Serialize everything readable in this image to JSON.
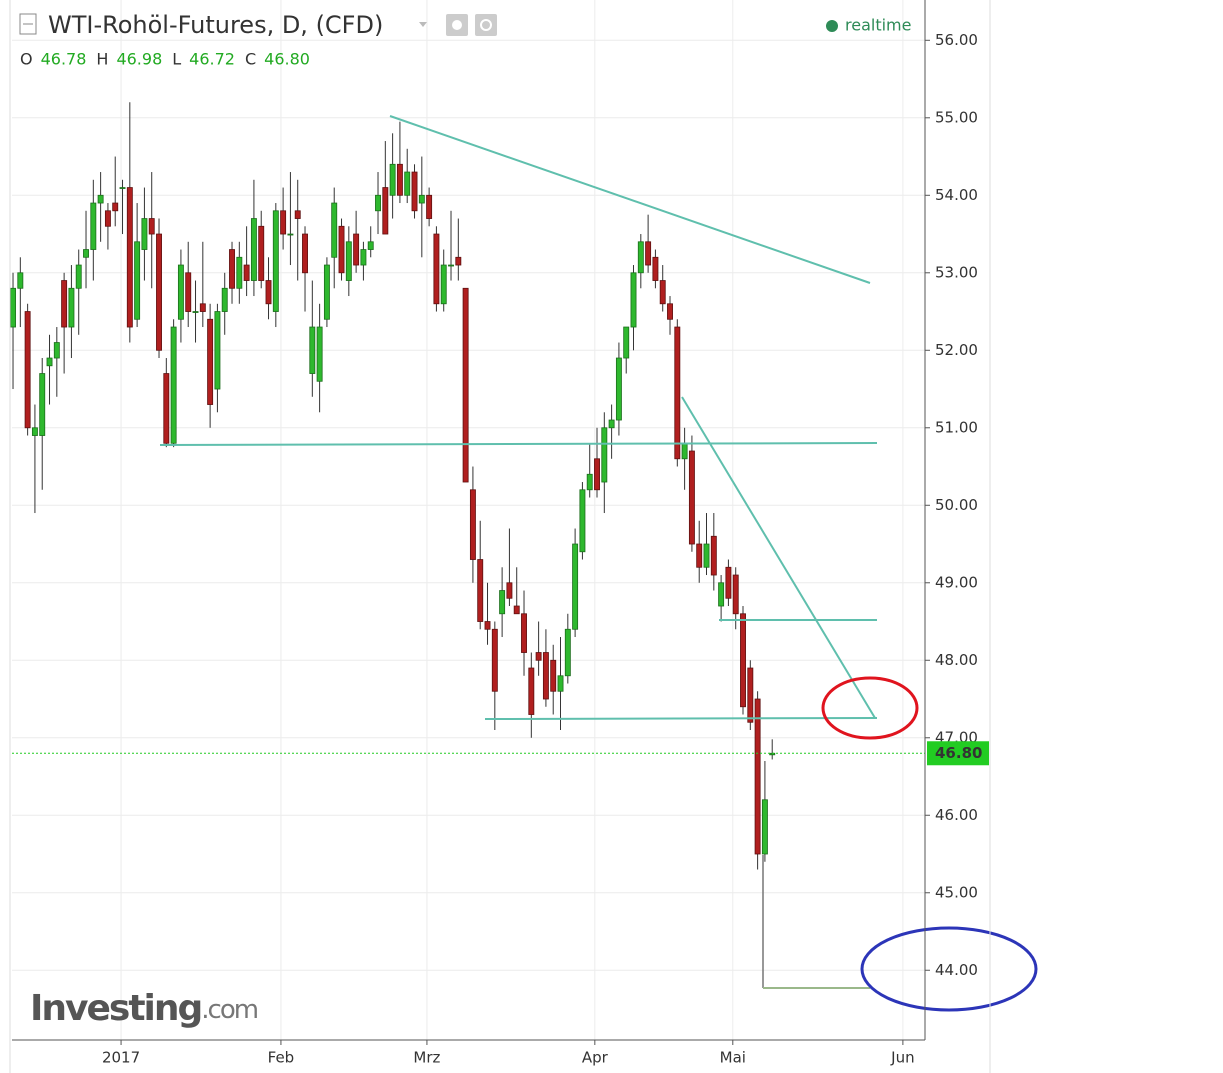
{
  "chart_data": {
    "type": "candlestick",
    "title": "WTI-Rohöl-Futures, D, (CFD)",
    "ohlc_legend": [
      {
        "key": "O",
        "value": "46.78"
      },
      {
        "key": "H",
        "value": "46.98"
      },
      {
        "key": "L",
        "value": "46.72"
      },
      {
        "key": "C",
        "value": "46.80"
      }
    ],
    "status": "realtime",
    "watermark": {
      "brand": "Investing",
      "suffix": ".com"
    },
    "up_color": "#2eb82e",
    "down_color": "#b01f1f",
    "grid": true,
    "open": [
      52.3,
      52.8,
      52.5,
      50.9,
      50.9,
      51.8,
      51.9,
      52.9,
      52.3,
      52.8,
      53.2,
      53.3,
      53.9,
      53.8,
      53.9,
      54.1,
      54.1,
      52.4,
      53.3,
      53.7,
      53.5,
      51.7,
      50.8,
      52.4,
      53.0,
      52.5,
      52.6,
      52.4,
      51.5,
      52.5,
      53.3,
      52.8,
      53.1,
      52.9,
      53.6,
      52.9,
      52.5,
      53.8,
      53.5,
      53.8,
      53.5,
      51.7,
      51.6,
      52.4,
      53.2,
      53.6,
      52.9,
      53.5,
      53.1,
      53.3,
      53.8,
      54.1,
      54.0,
      54.4,
      54.0,
      54.3,
      53.9,
      54.0,
      53.5,
      52.6,
      53.1,
      53.2,
      52.8,
      50.2,
      49.3,
      48.5,
      48.4,
      48.6,
      49.0,
      48.7,
      48.6,
      47.9,
      48.1,
      48.1,
      48.0,
      47.6,
      47.8,
      48.4,
      49.4,
      50.2,
      50.6,
      50.3,
      51.0,
      51.1,
      51.9,
      52.3,
      53.0,
      53.4,
      53.2,
      52.9,
      52.6,
      52.3,
      50.6,
      50.7,
      49.5,
      49.2,
      49.6,
      48.7,
      49.2,
      49.1,
      48.6,
      47.9,
      47.5,
      45.5,
      46.78
    ],
    "high": [
      53.0,
      53.2,
      52.6,
      51.3,
      51.9,
      52.2,
      52.3,
      53.0,
      53.1,
      53.3,
      53.8,
      54.2,
      54.3,
      53.9,
      54.5,
      54.2,
      55.2,
      53.9,
      54.1,
      54.3,
      53.7,
      51.9,
      52.4,
      53.3,
      53.4,
      52.9,
      53.4,
      52.6,
      52.6,
      53.0,
      53.4,
      53.4,
      53.6,
      54.2,
      53.8,
      53.2,
      53.9,
      54.1,
      54.3,
      54.2,
      53.6,
      52.9,
      52.6,
      53.2,
      54.1,
      53.7,
      53.6,
      53.8,
      53.4,
      53.6,
      54.3,
      54.7,
      54.8,
      54.95,
      54.6,
      54.4,
      54.5,
      54.1,
      53.6,
      53.3,
      53.8,
      53.7,
      52.8,
      50.5,
      49.8,
      49.0,
      48.5,
      49.2,
      49.7,
      49.2,
      48.9,
      48.1,
      48.5,
      48.4,
      48.2,
      48.3,
      48.6,
      49.7,
      50.3,
      50.8,
      51.0,
      51.2,
      51.3,
      52.1,
      52.3,
      53.1,
      53.5,
      53.75,
      53.3,
      53.1,
      52.7,
      52.4,
      51.0,
      50.9,
      49.8,
      49.9,
      49.9,
      49.1,
      49.3,
      49.2,
      48.7,
      48.0,
      47.6,
      46.7,
      46.98
    ],
    "low": [
      51.5,
      52.3,
      50.9,
      49.9,
      50.2,
      51.3,
      51.4,
      51.7,
      51.9,
      52.2,
      52.8,
      52.9,
      53.4,
      53.3,
      53.6,
      53.5,
      52.1,
      52.3,
      52.9,
      52.8,
      51.9,
      50.75,
      50.75,
      52.1,
      52.3,
      52.1,
      52.3,
      51.0,
      51.2,
      52.2,
      52.6,
      52.6,
      52.7,
      52.7,
      52.8,
      52.4,
      52.3,
      53.3,
      53.1,
      52.9,
      52.5,
      51.4,
      51.2,
      52.3,
      52.8,
      52.9,
      52.7,
      53.0,
      52.9,
      53.2,
      53.5,
      53.5,
      53.7,
      53.9,
      53.9,
      53.7,
      53.2,
      53.6,
      52.5,
      52.5,
      52.9,
      52.9,
      50.3,
      49.0,
      48.4,
      48.2,
      47.1,
      48.3,
      48.7,
      48.6,
      47.8,
      47.0,
      47.8,
      47.4,
      47.3,
      47.1,
      47.7,
      48.3,
      49.3,
      50.1,
      50.1,
      49.9,
      50.6,
      50.9,
      51.7,
      52.0,
      52.8,
      53.0,
      52.8,
      52.5,
      52.2,
      50.5,
      50.2,
      49.4,
      49.0,
      49.1,
      48.9,
      48.5,
      48.7,
      48.4,
      47.3,
      47.1,
      45.3,
      45.4,
      46.72
    ],
    "close": [
      52.8,
      53.0,
      51.0,
      51.0,
      51.7,
      51.9,
      52.1,
      52.3,
      52.8,
      53.1,
      53.3,
      53.9,
      54.0,
      53.6,
      53.8,
      54.1,
      52.3,
      53.4,
      53.7,
      53.5,
      52.0,
      50.8,
      52.3,
      53.1,
      52.5,
      52.5,
      52.5,
      51.3,
      52.5,
      52.8,
      52.8,
      53.2,
      52.9,
      53.7,
      52.9,
      52.6,
      53.8,
      53.5,
      53.5,
      53.7,
      53.0,
      52.3,
      52.3,
      53.1,
      53.9,
      53.0,
      53.4,
      53.1,
      53.3,
      53.4,
      54.0,
      53.5,
      54.4,
      54.0,
      54.3,
      53.8,
      54.0,
      53.7,
      52.6,
      53.1,
      53.1,
      53.1,
      50.3,
      49.3,
      48.5,
      48.4,
      47.6,
      48.9,
      48.8,
      48.6,
      48.1,
      47.3,
      48.0,
      47.5,
      47.6,
      47.8,
      48.4,
      49.5,
      50.2,
      50.4,
      50.2,
      51.0,
      51.1,
      51.9,
      52.3,
      53.0,
      53.4,
      53.1,
      52.9,
      52.6,
      52.4,
      50.6,
      50.8,
      49.5,
      49.2,
      49.5,
      49.1,
      49.0,
      48.8,
      48.6,
      47.4,
      47.2,
      45.5,
      46.2,
      46.8
    ],
    "last_price": {
      "value": 46.8,
      "label": "46.80"
    },
    "xlim": [
      -0.14,
      124.93
    ],
    "xticks": [
      {
        "value": 14.8,
        "label": "2017"
      },
      {
        "value": 36.7,
        "label": "Feb"
      },
      {
        "value": 56.7,
        "label": "Mrz"
      },
      {
        "value": 79.7,
        "label": "Apr"
      },
      {
        "value": 98.6,
        "label": "Mai"
      },
      {
        "value": 121.9,
        "label": "Jun"
      }
    ],
    "ylim": [
      43.1,
      56.52
    ],
    "yticks": [
      {
        "value": 44,
        "label": "44.00"
      },
      {
        "value": 45,
        "label": "45.00"
      },
      {
        "value": 46,
        "label": "46.00"
      },
      {
        "value": 47,
        "label": "47.00"
      },
      {
        "value": 48,
        "label": "48.00"
      },
      {
        "value": 49,
        "label": "49.00"
      },
      {
        "value": 50,
        "label": "50.00"
      },
      {
        "value": 51,
        "label": "51.00"
      },
      {
        "value": 52,
        "label": "52.00"
      },
      {
        "value": 53,
        "label": "53.00"
      },
      {
        "value": 54,
        "label": "54.00"
      },
      {
        "value": 55,
        "label": "55.00"
      },
      {
        "value": 56,
        "label": "56.00"
      }
    ]
  }
}
